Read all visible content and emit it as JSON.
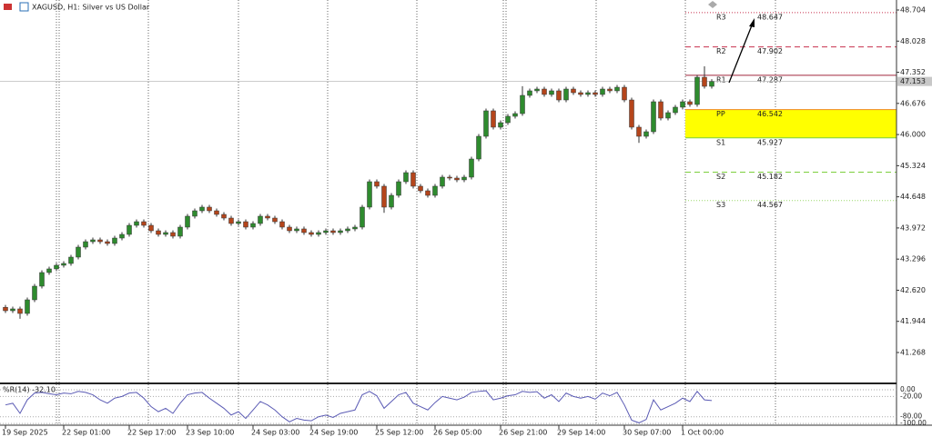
{
  "header": {
    "title": "XAGUSD, H1: Silver vs US Dollar"
  },
  "chart_data": {
    "type": "candlestick",
    "categories": [
      "19 Sep 2025",
      null,
      null,
      null,
      null,
      null,
      null,
      null,
      "22 Sep 01:00",
      null,
      null,
      null,
      null,
      null,
      null,
      null,
      null,
      "22 Sep 17:00",
      null,
      null,
      null,
      null,
      null,
      null,
      null,
      "23 Sep 10:00",
      null,
      null,
      null,
      null,
      null,
      null,
      null,
      null,
      "24 Sep 03:00",
      null,
      null,
      null,
      null,
      null,
      null,
      null,
      "24 Sep 19:00",
      null,
      null,
      null,
      null,
      null,
      null,
      null,
      null,
      "25 Sep 12:00",
      null,
      null,
      null,
      null,
      null,
      null,
      null,
      "26 Sep 05:00",
      null,
      null,
      null,
      null,
      null,
      null,
      null,
      null,
      "26 Sep 21:00",
      null,
      null,
      null,
      null,
      null,
      null,
      null,
      "29 Sep 14:00",
      null,
      null,
      null,
      null,
      null,
      null,
      null,
      null,
      "30 Sep 07:00",
      null,
      null,
      null,
      null,
      null,
      null,
      null,
      "1 Oct 00:00",
      null,
      null,
      null,
      null
    ],
    "open": [
      42.25,
      42.175,
      42.215,
      42.116,
      42.412,
      42.708,
      43.004,
      43.083,
      43.162,
      43.201,
      43.339,
      43.556,
      43.674,
      43.714,
      43.674,
      43.635,
      43.753,
      43.832,
      44.029,
      44.108,
      44.029,
      43.911,
      43.832,
      43.872,
      43.793,
      43.99,
      44.227,
      44.345,
      44.424,
      44.345,
      44.266,
      44.187,
      44.069,
      44.108,
      43.99,
      44.069,
      44.227,
      44.187,
      44.108,
      43.99,
      43.911,
      43.951,
      43.872,
      43.832,
      43.872,
      43.911,
      43.872,
      43.911,
      43.951,
      43.99,
      44.424,
      44.976,
      44.878,
      44.424,
      44.68,
      44.976,
      45.173,
      44.878,
      44.779,
      44.68,
      44.878,
      45.075,
      45.055,
      45.016,
      45.075,
      45.469,
      45.962,
      46.515,
      46.16,
      46.258,
      46.396,
      46.455,
      46.85,
      46.949,
      46.988,
      46.87,
      46.949,
      46.751,
      46.988,
      46.909,
      46.87,
      46.909,
      46.87,
      46.988,
      46.949,
      47.027,
      46.751,
      46.16,
      45.962,
      46.061,
      46.712,
      46.357,
      46.475,
      46.594,
      46.712,
      46.653,
      47.244,
      47.047
    ],
    "high": [
      42.3,
      42.265,
      42.265,
      42.462,
      42.758,
      43.054,
      43.133,
      43.212,
      43.251,
      43.389,
      43.606,
      43.724,
      43.764,
      43.764,
      43.724,
      43.803,
      43.882,
      44.079,
      44.158,
      44.158,
      44.079,
      43.961,
      43.922,
      43.922,
      44.04,
      44.277,
      44.395,
      44.474,
      44.474,
      44.395,
      44.316,
      44.237,
      44.158,
      44.158,
      44.119,
      44.277,
      44.277,
      44.237,
      44.158,
      44.04,
      44.001,
      44.001,
      43.922,
      43.922,
      43.961,
      43.961,
      43.961,
      44.001,
      44.04,
      44.474,
      45.026,
      45.026,
      44.928,
      44.73,
      45.026,
      45.223,
      45.223,
      44.928,
      44.829,
      44.928,
      45.125,
      45.125,
      45.105,
      45.125,
      45.519,
      46.012,
      46.565,
      46.565,
      46.308,
      46.446,
      46.505,
      47.05,
      46.999,
      47.038,
      47.038,
      46.999,
      46.999,
      47.038,
      47.038,
      46.959,
      46.959,
      46.959,
      47.038,
      47.038,
      47.077,
      47.077,
      46.801,
      46.21,
      46.111,
      46.762,
      46.762,
      46.525,
      46.644,
      46.762,
      46.762,
      47.294,
      47.48,
      47.203
    ],
    "low": [
      42.125,
      42.125,
      42.0,
      42.066,
      42.362,
      42.658,
      42.954,
      43.033,
      43.112,
      43.151,
      43.289,
      43.506,
      43.624,
      43.624,
      43.585,
      43.585,
      43.703,
      43.782,
      43.979,
      43.979,
      43.861,
      43.782,
      43.782,
      43.743,
      43.743,
      43.94,
      44.177,
      44.295,
      44.295,
      44.216,
      44.137,
      44.019,
      44.019,
      43.94,
      43.94,
      44.019,
      44.137,
      44.058,
      43.94,
      43.861,
      43.861,
      43.822,
      43.782,
      43.782,
      43.822,
      43.822,
      43.822,
      43.861,
      43.901,
      43.94,
      44.374,
      44.828,
      44.3,
      44.374,
      44.63,
      44.926,
      44.828,
      44.729,
      44.63,
      44.63,
      44.828,
      45.005,
      44.966,
      44.966,
      45.025,
      45.419,
      45.912,
      46.11,
      46.11,
      46.208,
      46.346,
      46.405,
      46.8,
      46.899,
      46.82,
      46.82,
      46.701,
      46.701,
      46.859,
      46.82,
      46.82,
      46.82,
      46.82,
      46.899,
      46.899,
      46.701,
      46.11,
      45.82,
      45.912,
      46.011,
      46.307,
      46.307,
      46.425,
      46.544,
      46.603,
      46.603,
      46.997,
      46.997
    ],
    "close": [
      42.175,
      42.215,
      42.116,
      42.412,
      42.708,
      43.004,
      43.083,
      43.162,
      43.201,
      43.339,
      43.556,
      43.674,
      43.714,
      43.674,
      43.635,
      43.753,
      43.832,
      44.029,
      44.108,
      44.029,
      43.911,
      43.832,
      43.872,
      43.793,
      43.99,
      44.227,
      44.345,
      44.424,
      44.345,
      44.266,
      44.187,
      44.069,
      44.108,
      43.99,
      44.069,
      44.227,
      44.187,
      44.108,
      43.99,
      43.911,
      43.951,
      43.872,
      43.832,
      43.872,
      43.911,
      43.872,
      43.911,
      43.951,
      43.99,
      44.424,
      44.976,
      44.878,
      44.424,
      44.68,
      44.976,
      45.173,
      44.878,
      44.779,
      44.68,
      44.878,
      45.075,
      45.055,
      45.016,
      45.075,
      45.469,
      45.962,
      46.515,
      46.16,
      46.258,
      46.396,
      46.455,
      46.85,
      46.949,
      46.988,
      46.87,
      46.949,
      46.751,
      46.988,
      46.909,
      46.87,
      46.909,
      46.87,
      46.988,
      46.949,
      47.027,
      46.751,
      46.16,
      45.962,
      46.061,
      46.712,
      46.357,
      46.475,
      46.594,
      46.712,
      46.653,
      47.244,
      47.047,
      47.153
    ],
    "up_color": "#2e8b2e",
    "down_color": "#b5451b",
    "ylim": [
      40.617,
      48.921
    ],
    "yticks": [
      48.704,
      48.028,
      47.352,
      46.676,
      {
        "value": 46,
        "label": "46.000"
      },
      45.324,
      44.648,
      43.972,
      43.296,
      {
        "value": 42.62,
        "label": "42.620"
      },
      41.944,
      41.268
    ],
    "current_price": 47.153,
    "pivots": [
      {
        "name": "R3",
        "value": 48.647,
        "color": "#c8324e",
        "style": "dotted"
      },
      {
        "name": "R2",
        "value": 47.902,
        "color": "#c8324e",
        "style": "dashed"
      },
      {
        "name": "R1",
        "value": 47.287,
        "color": "#a0283c",
        "style": "solid"
      },
      {
        "name": "PP",
        "value": 46.542,
        "color": "#f08a1c",
        "style": "solid",
        "fill_to_next": "#ffff00"
      },
      {
        "name": "S1",
        "value": 45.927,
        "color": "#7ccf3c",
        "style": "solid"
      },
      {
        "name": "S2",
        "value": 45.182,
        "color": "#7ccf3c",
        "style": "dashed"
      },
      {
        "name": "S3",
        "value": 44.567,
        "color": "#9ad86a",
        "style": "dotted"
      }
    ],
    "oscillator": {
      "type": "line",
      "title": "%R(14) -32.10",
      "color": "#5a5ab4",
      "ylim": [
        -105,
        16
      ],
      "yticks": [
        {
          "value": 0,
          "label": "0.00"
        },
        {
          "value": -20,
          "label": "-20.00"
        },
        {
          "value": -80,
          "label": "-80.00"
        },
        {
          "value": -100,
          "label": "-100.00"
        }
      ],
      "values": [
        -45,
        -40,
        -70,
        -30,
        -10,
        -8,
        -12,
        -15,
        -10,
        -12,
        -5,
        -8,
        -15,
        -30,
        -40,
        -25,
        -20,
        -10,
        -8,
        -25,
        -50,
        -65,
        -55,
        -70,
        -40,
        -15,
        -10,
        -8,
        -25,
        -40,
        -55,
        -75,
        -65,
        -85,
        -60,
        -35,
        -45,
        -60,
        -80,
        -95,
        -85,
        -90,
        -92,
        -80,
        -75,
        -82,
        -70,
        -65,
        -60,
        -15,
        -5,
        -18,
        -55,
        -35,
        -15,
        -8,
        -40,
        -50,
        -60,
        -38,
        -20,
        -25,
        -30,
        -22,
        -8,
        -5,
        -3,
        -30,
        -25,
        -18,
        -15,
        -5,
        -8,
        -6,
        -25,
        -15,
        -35,
        -10,
        -20,
        -25,
        -20,
        -28,
        -10,
        -18,
        -8,
        -45,
        -90,
        -98,
        -88,
        -30,
        -60,
        -50,
        -40,
        -25,
        -35,
        -5,
        -30,
        -32.1
      ]
    }
  }
}
